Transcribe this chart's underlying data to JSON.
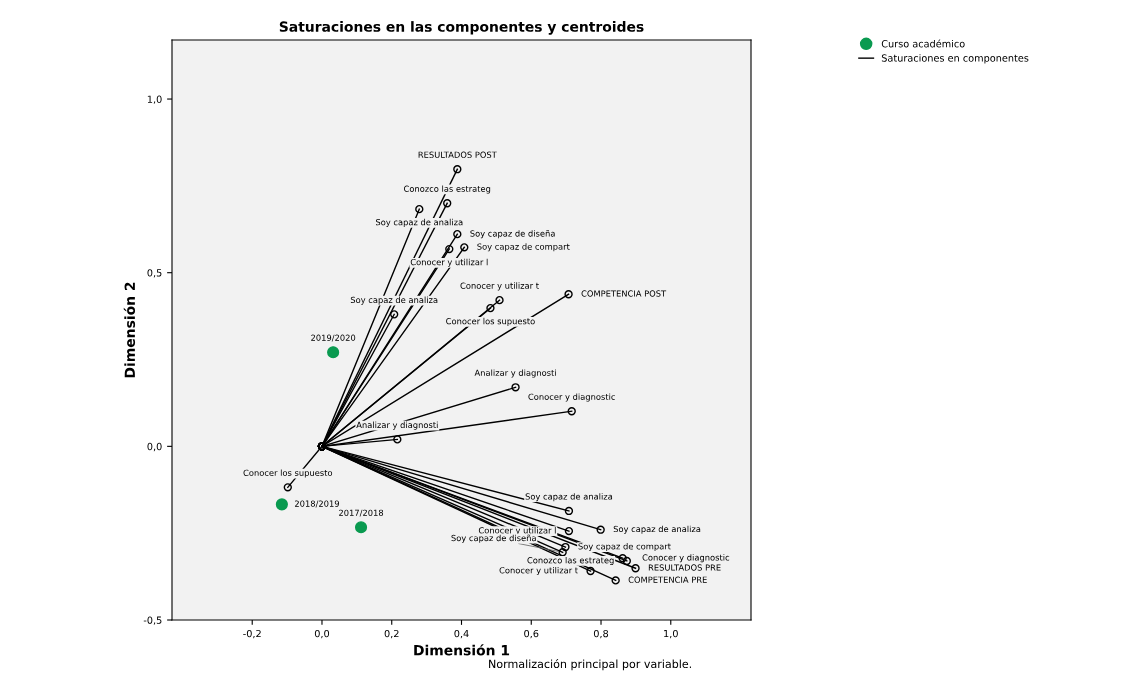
{
  "chart_data": {
    "type": "scatter",
    "title": "Saturaciones en las componentes y centroides",
    "xlabel": "Dimensión 1",
    "ylabel": "Dimensión 2",
    "xlim": [
      -0.43,
      1.23
    ],
    "ylim": [
      -0.5,
      1.17
    ],
    "xticks": [
      {
        "value": -0.2,
        "label": "-0,2"
      },
      {
        "value": 0.0,
        "label": "0,0"
      },
      {
        "value": 0.2,
        "label": "0,2"
      },
      {
        "value": 0.4,
        "label": "0,4"
      },
      {
        "value": 0.6,
        "label": "0,6"
      },
      {
        "value": 0.8,
        "label": "0,8"
      },
      {
        "value": 1.0,
        "label": "1,0"
      }
    ],
    "yticks": [
      {
        "value": -0.5,
        "label": "-0,5"
      },
      {
        "value": 0.0,
        "label": "0,0"
      },
      {
        "value": 0.5,
        "label": "0,5"
      },
      {
        "value": 1.0,
        "label": "1,0"
      }
    ],
    "grid": false,
    "legend": "top right",
    "series": [
      {
        "name": "Curso académico",
        "marker": "circle",
        "color": "#0a9a50",
        "x": [
          0.032,
          -0.115,
          0.112
        ],
        "values": [
          0.271,
          -0.167,
          -0.233
        ]
      },
      {
        "name": "Saturaciones en componentes",
        "type": "line",
        "marker": "circle",
        "color": "#000000",
        "x": [
          0,
          0.388
        ],
        "values": [
          0,
          0.798
        ]
      },
      {
        "type": "line",
        "marker": "circle",
        "color": "#000000",
        "x": [
          0,
          0.359
        ],
        "values": [
          0,
          0.7
        ]
      },
      {
        "type": "line",
        "marker": "circle",
        "color": "#000000",
        "x": [
          0,
          0.279
        ],
        "values": [
          0,
          0.683
        ]
      },
      {
        "type": "line",
        "marker": "circle",
        "color": "#000000",
        "x": [
          0,
          0.388
        ],
        "values": [
          0,
          0.611
        ]
      },
      {
        "type": "line",
        "marker": "circle",
        "color": "#000000",
        "x": [
          0,
          0.365
        ],
        "values": [
          0,
          0.568
        ]
      },
      {
        "type": "line",
        "marker": "circle",
        "color": "#000000",
        "x": [
          0,
          0.408
        ],
        "values": [
          0,
          0.573
        ]
      },
      {
        "type": "line",
        "marker": "circle",
        "color": "#000000",
        "x": [
          0,
          0.509
        ],
        "values": [
          0,
          0.421
        ]
      },
      {
        "type": "line",
        "marker": "circle",
        "color": "#000000",
        "x": [
          0,
          0.483
        ],
        "values": [
          0,
          0.398
        ]
      },
      {
        "type": "line",
        "marker": "circle",
        "color": "#000000",
        "x": [
          0,
          0.707
        ],
        "values": [
          0,
          0.438
        ]
      },
      {
        "type": "line",
        "marker": "circle",
        "color": "#000000",
        "x": [
          0,
          0.207
        ],
        "values": [
          0,
          0.38
        ]
      },
      {
        "type": "line",
        "marker": "circle",
        "color": "#000000",
        "x": [
          0,
          0.555
        ],
        "values": [
          0,
          0.17
        ]
      },
      {
        "type": "line",
        "marker": "circle",
        "color": "#000000",
        "x": [
          0,
          0.716
        ],
        "values": [
          0,
          0.101
        ]
      },
      {
        "type": "line",
        "marker": "circle",
        "color": "#000000",
        "x": [
          0,
          0.216
        ],
        "values": [
          0,
          0.02
        ]
      },
      {
        "type": "line",
        "marker": "circle",
        "color": "#000000",
        "x": [
          0,
          -0.098
        ],
        "values": [
          0,
          -0.118
        ]
      },
      {
        "type": "line",
        "marker": "circle",
        "color": "#000000",
        "x": [
          0,
          0.708
        ],
        "values": [
          0,
          -0.186
        ]
      },
      {
        "type": "line",
        "marker": "circle",
        "color": "#000000",
        "x": [
          0,
          0.799
        ],
        "values": [
          0,
          -0.24
        ]
      },
      {
        "type": "line",
        "marker": "circle",
        "color": "#000000",
        "x": [
          0,
          0.708
        ],
        "values": [
          0,
          -0.244
        ]
      },
      {
        "type": "line",
        "marker": "circle",
        "color": "#000000",
        "x": [
          0,
          0.698
        ],
        "values": [
          0,
          -0.29
        ]
      },
      {
        "type": "line",
        "marker": "circle",
        "color": "#000000",
        "x": [
          0,
          0.862
        ],
        "values": [
          0,
          -0.322
        ]
      },
      {
        "type": "line",
        "marker": "circle",
        "color": "#000000",
        "x": [
          0,
          0.874
        ],
        "values": [
          0,
          -0.33
        ]
      },
      {
        "type": "line",
        "marker": "circle",
        "color": "#000000",
        "x": [
          0,
          0.69
        ],
        "values": [
          0,
          -0.305
        ]
      },
      {
        "type": "line",
        "marker": "circle",
        "color": "#000000",
        "x": [
          0,
          0.899
        ],
        "values": [
          0,
          -0.351
        ]
      },
      {
        "type": "line",
        "marker": "circle",
        "color": "#000000",
        "x": [
          0,
          0.77
        ],
        "values": [
          0,
          -0.359
        ]
      },
      {
        "type": "line",
        "marker": "circle",
        "color": "#000000",
        "x": [
          0,
          0.842
        ],
        "values": [
          0,
          -0.386
        ]
      }
    ],
    "annotations": [
      {
        "text": "2019/2020",
        "x": 0.032,
        "y": 0.271
      },
      {
        "text": "2018/2019",
        "x": -0.115,
        "y": -0.167
      },
      {
        "text": "2017/2018",
        "x": 0.112,
        "y": -0.233
      },
      {
        "text": "RESULTADOS POST",
        "x": 0.388,
        "y": 0.798
      },
      {
        "text": "Conozco las estrateg",
        "x": 0.359,
        "y": 0.7
      },
      {
        "text": "Soy capaz de analiza",
        "x": 0.279,
        "y": 0.683
      },
      {
        "text": "Soy capaz de diseña",
        "x": 0.388,
        "y": 0.611
      },
      {
        "text": "Conocer y utilizar l",
        "x": 0.365,
        "y": 0.568
      },
      {
        "text": "Soy capaz de compart",
        "x": 0.408,
        "y": 0.573
      },
      {
        "text": "Conocer y utilizar t",
        "x": 0.509,
        "y": 0.421
      },
      {
        "text": "Conocer los supuesto",
        "x": 0.483,
        "y": 0.398
      },
      {
        "text": "COMPETENCIA POST",
        "x": 0.707,
        "y": 0.438
      },
      {
        "text": "Soy capaz de analiza",
        "x": 0.207,
        "y": 0.38
      },
      {
        "text": "Analizar y diagnosti",
        "x": 0.555,
        "y": 0.17
      },
      {
        "text": "Conocer y diagnostic",
        "x": 0.716,
        "y": 0.101
      },
      {
        "text": "Analizar y diagnosti",
        "x": 0.216,
        "y": 0.02
      },
      {
        "text": "Conocer los supuesto",
        "x": -0.098,
        "y": -0.118
      },
      {
        "text": "Soy capaz de analiza",
        "x": 0.708,
        "y": -0.186
      },
      {
        "text": "Soy capaz de analiza",
        "x": 0.799,
        "y": -0.24
      },
      {
        "text": "Conocer y utilizar l",
        "x": 0.708,
        "y": -0.244
      },
      {
        "text": "Soy capaz de compart",
        "x": 0.698,
        "y": -0.29
      },
      {
        "text": "Conocer y diagnostic",
        "x": 0.862,
        "y": -0.322
      },
      {
        "text": "Conozco las estrateg",
        "x": 0.874,
        "y": -0.33
      },
      {
        "text": "Soy capaz de diseña",
        "x": 0.69,
        "y": -0.305
      },
      {
        "text": "RESULTADOS PRE",
        "x": 0.899,
        "y": -0.351
      },
      {
        "text": "Conocer y utilizar t",
        "x": 0.77,
        "y": -0.359
      },
      {
        "text": "COMPETENCIA PRE",
        "x": 0.842,
        "y": -0.386
      },
      "Normalización principal por variable."
    ]
  }
}
